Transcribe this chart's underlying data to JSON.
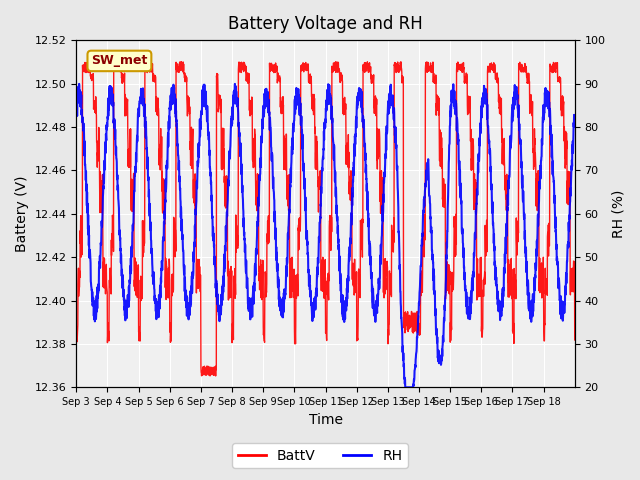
{
  "title": "Battery Voltage and RH",
  "xlabel": "Time",
  "ylabel_left": "Battery (V)",
  "ylabel_right": "RH (%)",
  "ylim_left": [
    12.36,
    12.52
  ],
  "ylim_right": [
    20,
    100
  ],
  "yticks_left": [
    12.36,
    12.38,
    12.4,
    12.42,
    12.44,
    12.46,
    12.48,
    12.5,
    12.52
  ],
  "yticks_right": [
    20,
    30,
    40,
    50,
    60,
    70,
    80,
    90,
    100
  ],
  "xtick_labels": [
    "Sep 3",
    "Sep 4",
    "Sep 5",
    "Sep 6",
    "Sep 7",
    "Sep 8",
    "Sep 9",
    "Sep 10",
    "Sep 11",
    "Sep 12",
    "Sep 13",
    "Sep 14",
    "Sep 15",
    "Sep 16",
    "Sep 17",
    "Sep 18"
  ],
  "annotation_text": "SW_met",
  "annotation_bg": "#ffffcc",
  "annotation_border": "#cc9900",
  "batt_color": "#ff0000",
  "rh_color": "#0000ff",
  "bg_color": "#e8e8e8",
  "plot_bg_color": "#f5f5f5",
  "grid_color": "#ffffff",
  "legend_labels": [
    "BattV",
    "RH"
  ],
  "n_days": 16
}
